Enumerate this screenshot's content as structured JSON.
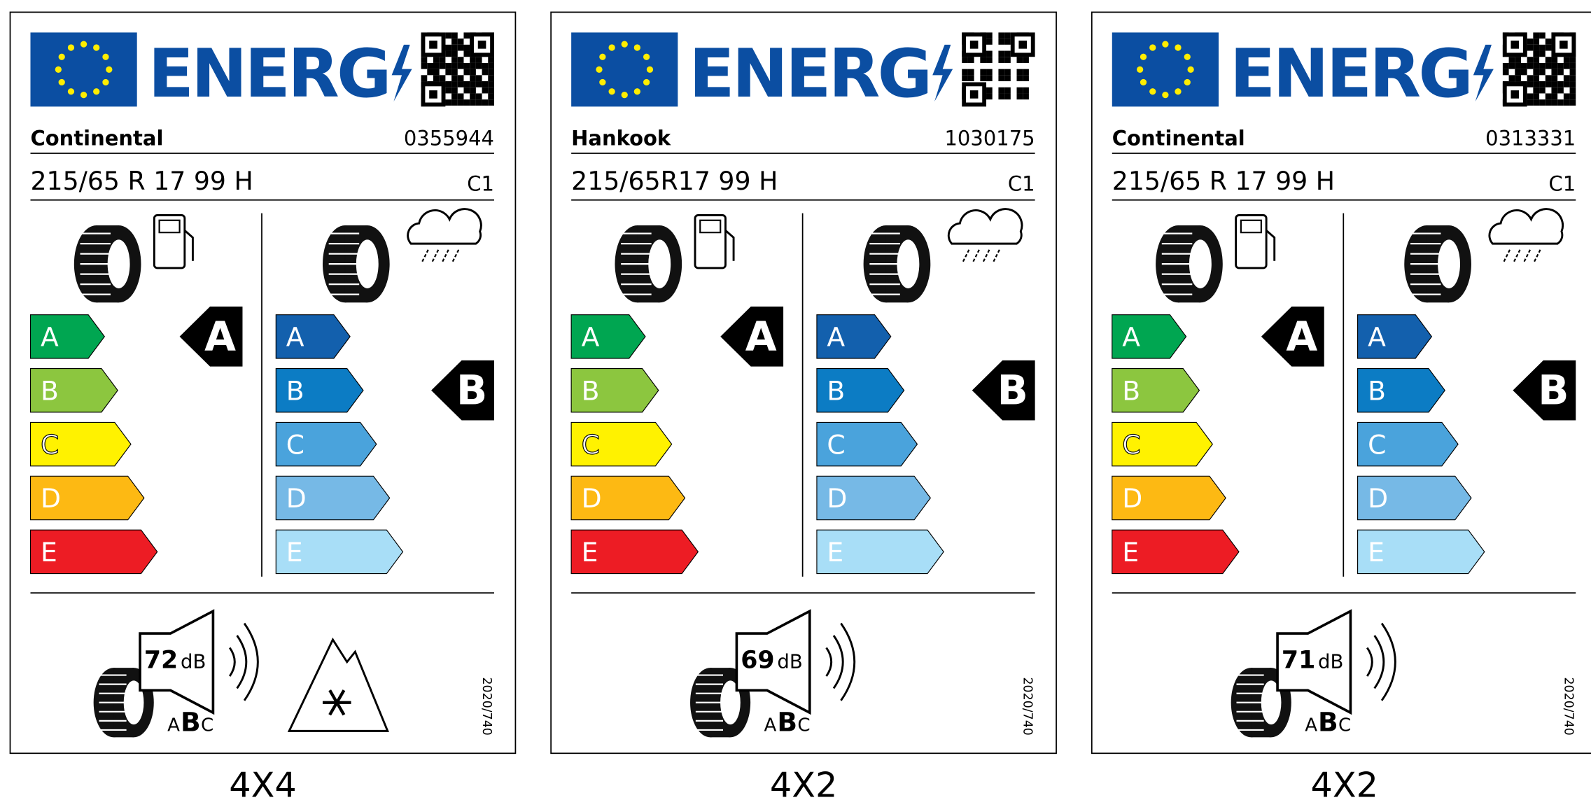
{
  "energy_word": "ENERG",
  "scale": [
    "A",
    "B",
    "C",
    "D",
    "E"
  ],
  "labels": [
    {
      "brand": "Continental",
      "code": "0355944",
      "size": "215/65 R 17 99 H",
      "tyre_class": "C1",
      "fuel_class": "A",
      "wet_class": "B",
      "noise_db": "72",
      "noise_unit": "dB",
      "noise_scale": [
        "A",
        "B",
        "C"
      ],
      "noise_class": "B",
      "snow": true,
      "regulation": "2020/740",
      "caption": "4X4"
    },
    {
      "brand": "Hankook",
      "code": "1030175",
      "size": "215/65R17 99 H",
      "tyre_class": "C1",
      "fuel_class": "A",
      "wet_class": "B",
      "noise_db": "69",
      "noise_unit": "dB",
      "noise_scale": [
        "A",
        "B",
        "C"
      ],
      "noise_class": "B",
      "snow": false,
      "regulation": "2020/740",
      "caption": "4X2"
    },
    {
      "brand": "Continental",
      "code": "0313331",
      "size": "215/65 R 17 99 H",
      "tyre_class": "C1",
      "fuel_class": "A",
      "wet_class": "B",
      "noise_db": "71",
      "noise_unit": "dB",
      "noise_scale": [
        "A",
        "B",
        "C"
      ],
      "noise_class": "B",
      "snow": false,
      "regulation": "2020/740",
      "caption": "4X2"
    }
  ]
}
